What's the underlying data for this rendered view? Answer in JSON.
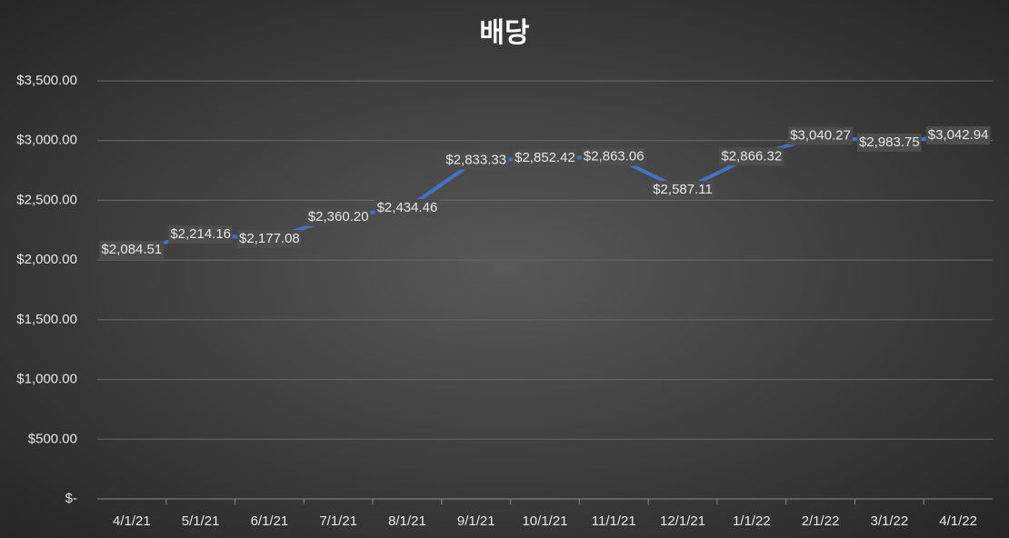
{
  "chart_data": {
    "type": "line",
    "title": "배당",
    "categories": [
      "4/1/21",
      "5/1/21",
      "6/1/21",
      "7/1/21",
      "8/1/21",
      "9/1/21",
      "10/1/21",
      "11/1/21",
      "12/1/21",
      "1/1/22",
      "2/1/22",
      "3/1/22",
      "4/1/22"
    ],
    "series": [
      {
        "name": "배당",
        "color": "#4472c4",
        "values": [
          2084.51,
          2214.16,
          2177.08,
          2360.2,
          2434.46,
          2833.33,
          2852.42,
          2863.06,
          2587.11,
          2866.32,
          3040.27,
          2983.75,
          3042.94
        ],
        "value_labels": [
          "$2,084.51",
          "$2,214.16",
          "$2,177.08",
          "$2,360.20",
          "$2,434.46",
          "$2,833.33",
          "$2,852.42",
          "$2,863.06",
          "$2,587.11",
          "$2,866.32",
          "$3,040.27",
          "$2,983.75",
          "$3,042.94"
        ]
      }
    ],
    "ylim": [
      0,
      3500
    ],
    "yticks": [
      {
        "value": 0,
        "label": "$-"
      },
      {
        "value": 500,
        "label": "$500.00"
      },
      {
        "value": 1000,
        "label": "$1,000.00"
      },
      {
        "value": 1500,
        "label": "$1,500.00"
      },
      {
        "value": 2000,
        "label": "$2,000.00"
      },
      {
        "value": 2500,
        "label": "$2,500.00"
      },
      {
        "value": 3000,
        "label": "$3,000.00"
      },
      {
        "value": 3500,
        "label": "$3,500.00"
      }
    ],
    "grid": true
  }
}
